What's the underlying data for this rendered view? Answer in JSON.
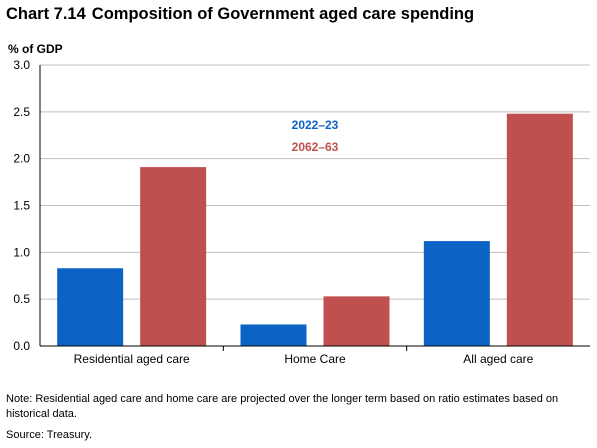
{
  "chart_number": "Chart 7.14",
  "chart_title": "Composition of Government aged care spending",
  "chart_data": {
    "type": "bar",
    "title": "Composition of Government aged care spending",
    "ylabel": "% of GDP",
    "xlabel": "",
    "categories": [
      "Residential aged care",
      "Home Care",
      "All aged care"
    ],
    "series": [
      {
        "name": "2022–23",
        "values": [
          0.83,
          0.23,
          1.12
        ],
        "color": "#0b63c5"
      },
      {
        "name": "2062–63",
        "values": [
          1.91,
          0.53,
          2.48
        ],
        "color": "#c0504d"
      }
    ],
    "ylim": [
      0,
      3.0
    ],
    "yticks": [
      "0.0",
      "0.5",
      "1.0",
      "1.5",
      "2.0",
      "2.5",
      "3.0"
    ],
    "grid": true,
    "legend_position": "top-center"
  },
  "note": "Note: Residential aged care and home care are projected over the longer term based on ratio estimates based on historical data.",
  "source": "Source: Treasury."
}
